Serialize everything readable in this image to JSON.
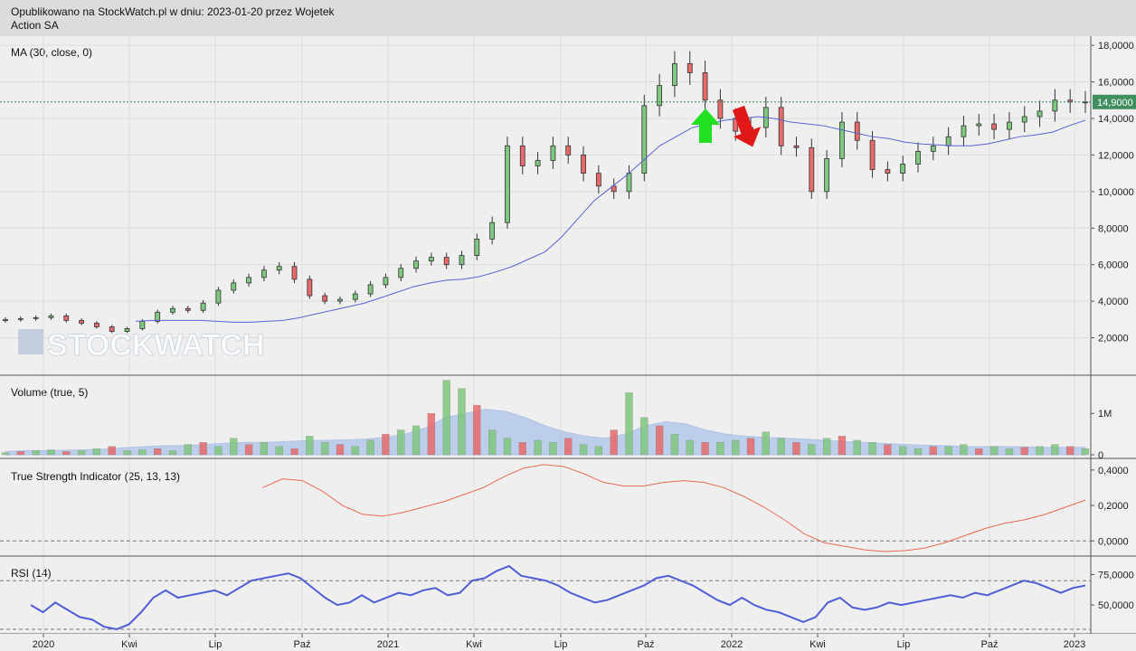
{
  "header": {
    "line1": "Opublikowano na StockWatch.pl w dniu: 2023-01-20 przez Wojetek",
    "line2": "Action SA"
  },
  "watermark": "STOCKWATCH",
  "colors": {
    "up": "#7fc87f",
    "down": "#e86a6a",
    "ma": "#5a63d8",
    "tsi": "#e86a52",
    "rsi": "#4f5ed6",
    "volfill": "#9db9e8",
    "arrow_up": "#21e021",
    "arrow_down": "#e01818"
  },
  "panels": {
    "price": {
      "label": "MA (30, close, 0)",
      "ticks": [
        "18,0000",
        "16,0000",
        "14,0000",
        "12,0000",
        "10,0000",
        "8,0000",
        "6,0000",
        "4,0000",
        "2,0000"
      ],
      "last_price": "14,9000"
    },
    "volume": {
      "label": "Volume (true, 5)",
      "ticks": [
        "1M",
        "0"
      ]
    },
    "tsi": {
      "label": "True Strength Indicator (25, 13, 13)",
      "ticks": [
        "0,4000",
        "0,2000",
        "0,0000"
      ]
    },
    "rsi": {
      "label": "RSI (14)",
      "ticks": [
        "75,0000",
        "50,0000"
      ]
    }
  },
  "x_labels": [
    "2020",
    "Kwi",
    "Lip",
    "Paź",
    "2021",
    "Kwi",
    "Lip",
    "Paź",
    "2022",
    "Kwi",
    "Lip",
    "Paź",
    "2023"
  ],
  "chart_data": [
    {
      "type": "line",
      "title": "MA (30, close, 0)",
      "series": [
        {
          "name": "price",
          "values": [
            3.0,
            3.05,
            3.1,
            3.2,
            2.95,
            2.8,
            2.6,
            2.35,
            2.5,
            2.9,
            3.4,
            3.6,
            3.5,
            3.9,
            4.6,
            5.0,
            5.3,
            5.7,
            5.9,
            5.2,
            4.3,
            4.0,
            4.1,
            4.4,
            4.9,
            5.3,
            5.8,
            6.2,
            6.4,
            6.0,
            6.5,
            7.4,
            8.3,
            12.5,
            11.4,
            11.7,
            12.5,
            12.0,
            11.0,
            10.3,
            10.0,
            11.0,
            14.7,
            15.8,
            17.0,
            16.5,
            15.0,
            14.0,
            13.3,
            13.5,
            14.6,
            12.5,
            12.4,
            10.0,
            11.8,
            13.8,
            12.8,
            11.2,
            11.0,
            11.5,
            12.2,
            12.5,
            13.0,
            13.6,
            13.7,
            13.4,
            13.8,
            14.1,
            14.4,
            15.0,
            14.9,
            14.9
          ]
        },
        {
          "name": "MA",
          "values": [
            2.9,
            2.95,
            2.95,
            2.95,
            2.95,
            2.9,
            2.85,
            2.85,
            2.9,
            2.95,
            3.1,
            3.3,
            3.5,
            3.7,
            3.9,
            4.2,
            4.5,
            4.8,
            5.0,
            5.15,
            5.2,
            5.35,
            5.6,
            5.9,
            6.3,
            6.7,
            7.5,
            8.5,
            9.5,
            10.2,
            10.9,
            11.7,
            12.5,
            13.0,
            13.5,
            13.7,
            13.9,
            14.0,
            14.1,
            14.0,
            13.8,
            13.7,
            13.6,
            13.4,
            13.2,
            13.0,
            12.9,
            12.7,
            12.6,
            12.55,
            12.5,
            12.5,
            12.6,
            12.8,
            13.0,
            13.1,
            13.25,
            13.6,
            13.9
          ]
        }
      ],
      "ylim": [
        0,
        18.5
      ],
      "annotations": [
        "buy arrow near Nov 2021",
        "sell arrow near Dec 2021"
      ]
    },
    {
      "type": "bar",
      "title": "Volume (true, 5)",
      "ylim": [
        0,
        1.9
      ],
      "values": [
        0.05,
        0.08,
        0.1,
        0.12,
        0.08,
        0.1,
        0.15,
        0.2,
        0.1,
        0.12,
        0.15,
        0.1,
        0.25,
        0.3,
        0.2,
        0.4,
        0.25,
        0.3,
        0.2,
        0.15,
        0.45,
        0.3,
        0.25,
        0.2,
        0.35,
        0.5,
        0.6,
        0.7,
        1.0,
        1.8,
        1.6,
        1.2,
        0.6,
        0.4,
        0.3,
        0.35,
        0.3,
        0.4,
        0.25,
        0.2,
        0.6,
        1.5,
        0.9,
        0.7,
        0.5,
        0.35,
        0.3,
        0.3,
        0.35,
        0.4,
        0.55,
        0.4,
        0.3,
        0.25,
        0.4,
        0.45,
        0.35,
        0.3,
        0.25,
        0.2,
        0.15,
        0.2,
        0.2,
        0.25,
        0.15,
        0.2,
        0.15,
        0.18,
        0.2,
        0.25,
        0.2,
        0.15
      ],
      "ma_values": [
        0.08,
        0.1,
        0.1,
        0.11,
        0.12,
        0.14,
        0.17,
        0.2,
        0.22,
        0.22,
        0.25,
        0.28,
        0.3,
        0.3,
        0.32,
        0.34,
        0.35,
        0.36,
        0.38,
        0.42,
        0.5,
        0.65,
        0.9,
        1.0,
        1.1,
        1.05,
        0.9,
        0.7,
        0.55,
        0.45,
        0.4,
        0.5,
        0.7,
        0.8,
        0.75,
        0.6,
        0.5,
        0.45,
        0.42,
        0.4,
        0.38,
        0.35,
        0.32,
        0.3,
        0.27,
        0.25,
        0.23,
        0.22,
        0.2,
        0.2,
        0.2,
        0.19,
        0.18,
        0.18,
        0.18
      ]
    },
    {
      "type": "line",
      "title": "True Strength Indicator (25, 13, 13)",
      "ylim": [
        -0.07,
        0.45
      ],
      "values": [
        0.3,
        0.35,
        0.34,
        0.28,
        0.2,
        0.15,
        0.14,
        0.16,
        0.19,
        0.22,
        0.26,
        0.3,
        0.36,
        0.41,
        0.43,
        0.42,
        0.38,
        0.33,
        0.31,
        0.31,
        0.33,
        0.34,
        0.33,
        0.3,
        0.25,
        0.19,
        0.12,
        0.04,
        -0.01,
        -0.03,
        -0.05,
        -0.06,
        -0.055,
        -0.04,
        -0.01,
        0.03,
        0.07,
        0.1,
        0.12,
        0.15,
        0.19,
        0.23
      ]
    },
    {
      "type": "line",
      "title": "RSI (14)",
      "ylim": [
        27,
        88
      ],
      "values": [
        50,
        44,
        52,
        46,
        40,
        38,
        32,
        30,
        34,
        44,
        56,
        62,
        56,
        58,
        60,
        62,
        58,
        64,
        70,
        72,
        74,
        76,
        72,
        64,
        56,
        50,
        52,
        58,
        52,
        56,
        60,
        58,
        62,
        64,
        58,
        60,
        70,
        72,
        78,
        82,
        74,
        72,
        70,
        66,
        60,
        56,
        52,
        54,
        58,
        62,
        66,
        72,
        74,
        70,
        66,
        60,
        54,
        50,
        56,
        50,
        46,
        44,
        40,
        36,
        40,
        52,
        56,
        48,
        46,
        48,
        52,
        50,
        52,
        54,
        56,
        58,
        56,
        60,
        58,
        62,
        66,
        70,
        68,
        64,
        60,
        64,
        66
      ]
    }
  ]
}
